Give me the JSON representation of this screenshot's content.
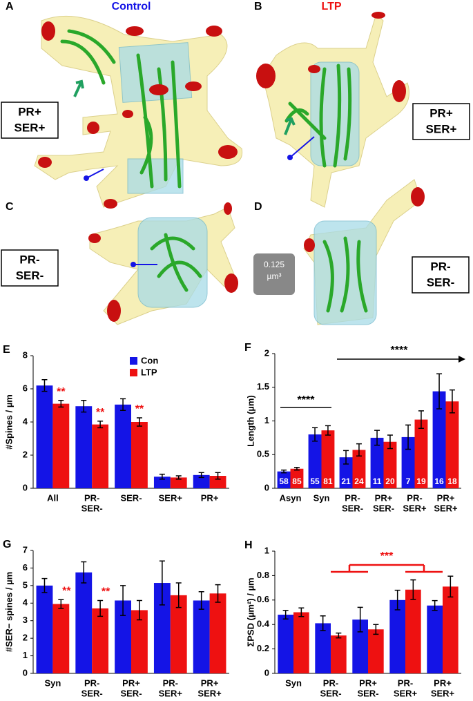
{
  "panels": [
    {
      "letter": "A",
      "title": "Control",
      "box": [
        "PR+",
        "SER+"
      ]
    },
    {
      "letter": "B",
      "title": "LTP",
      "box": [
        "PR+",
        "SER+"
      ]
    },
    {
      "letter": "C",
      "box": [
        "PR-",
        "SER-"
      ]
    },
    {
      "letter": "D",
      "box": [
        "PR-",
        "SER-"
      ]
    }
  ],
  "scale_cube": [
    "0.125",
    "µm³"
  ],
  "chart_data": [
    {
      "type": "bar",
      "letter": "E",
      "ylabel": "#Spines / µm",
      "legend": true,
      "categories": [
        [
          "All"
        ],
        [
          "PR-",
          "SER-"
        ],
        [
          "SER-"
        ],
        [
          "SER+"
        ],
        [
          "PR+"
        ]
      ],
      "series": [
        {
          "name": "Con",
          "color": "#1414e6",
          "values": [
            6.2,
            4.95,
            5.05,
            0.7,
            0.8
          ],
          "errors": [
            0.35,
            0.35,
            0.35,
            0.15,
            0.15
          ]
        },
        {
          "name": "LTP",
          "color": "#ee1111",
          "values": [
            5.1,
            3.85,
            4.0,
            0.65,
            0.75
          ],
          "errors": [
            0.2,
            0.2,
            0.25,
            0.1,
            0.2
          ]
        }
      ],
      "ylim": [
        0,
        8
      ],
      "yticks": [
        0,
        2,
        4,
        6,
        8
      ],
      "annotations": [
        "**",
        "**",
        "**"
      ],
      "annotation_color": "#ee1111"
    },
    {
      "type": "bar",
      "letter": "F",
      "ylabel": "Length (µm)",
      "categories": [
        [
          "Asyn"
        ],
        [
          "Syn"
        ],
        [
          "PR-",
          "SER-"
        ],
        [
          "PR+",
          "SER-"
        ],
        [
          "PR-",
          "SER+"
        ],
        [
          "PR+",
          "SER+"
        ]
      ],
      "series": [
        {
          "name": "Con",
          "color": "#1414e6",
          "values": [
            0.25,
            0.8,
            0.46,
            0.75,
            0.76,
            1.44
          ],
          "errors": [
            0.02,
            0.1,
            0.1,
            0.11,
            0.18,
            0.26
          ],
          "counts": [
            58,
            55,
            21,
            11,
            7,
            16
          ]
        },
        {
          "name": "LTP",
          "color": "#ee1111",
          "values": [
            0.29,
            0.86,
            0.57,
            0.69,
            1.02,
            1.29
          ],
          "errors": [
            0.02,
            0.07,
            0.09,
            0.1,
            0.13,
            0.17
          ],
          "counts": [
            85,
            81,
            24,
            20,
            19,
            18
          ]
        }
      ],
      "ylim": [
        0,
        2
      ],
      "yticks": [
        0,
        0.5,
        1,
        1.5,
        2
      ],
      "annotations": [
        "****",
        "****"
      ],
      "annotation_color": "#000000"
    },
    {
      "type": "bar",
      "letter": "G",
      "ylabel": "#SER− spines / µm",
      "categories": [
        [
          "Syn"
        ],
        [
          "PR-",
          "SER-"
        ],
        [
          "PR+",
          "SER-"
        ],
        [
          "PR-",
          "SER+"
        ],
        [
          "PR+",
          "SER+"
        ]
      ],
      "series": [
        {
          "name": "Con",
          "color": "#1414e6",
          "values": [
            5.0,
            5.75,
            4.15,
            5.15,
            4.15
          ],
          "errors": [
            0.4,
            0.6,
            0.85,
            1.25,
            0.5
          ]
        },
        {
          "name": "LTP",
          "color": "#ee1111",
          "values": [
            3.95,
            3.7,
            3.6,
            4.45,
            4.55
          ],
          "errors": [
            0.25,
            0.45,
            0.55,
            0.7,
            0.5
          ]
        }
      ],
      "ylim": [
        0,
        7
      ],
      "yticks": [
        0,
        1,
        2,
        3,
        4,
        5,
        6,
        7
      ],
      "annotations": [
        "**",
        "**"
      ],
      "annotation_color": "#ee1111"
    },
    {
      "type": "bar",
      "letter": "H",
      "ylabel": "ΣPSD (µm²) / µm",
      "categories": [
        [
          "Syn"
        ],
        [
          "PR-",
          "SER-"
        ],
        [
          "PR+",
          "SER-"
        ],
        [
          "PR-",
          "SER+"
        ],
        [
          "PR+",
          "SER+"
        ]
      ],
      "series": [
        {
          "name": "Con",
          "color": "#1414e6",
          "values": [
            0.48,
            0.41,
            0.44,
            0.6,
            0.555
          ],
          "errors": [
            0.035,
            0.06,
            0.1,
            0.08,
            0.04
          ]
        },
        {
          "name": "LTP",
          "color": "#ee1111",
          "values": [
            0.5,
            0.31,
            0.36,
            0.685,
            0.71
          ],
          "errors": [
            0.035,
            0.02,
            0.04,
            0.08,
            0.085
          ]
        }
      ],
      "ylim": [
        0,
        1
      ],
      "yticks": [
        0,
        0.2,
        0.4,
        0.6,
        0.8,
        1
      ],
      "annotations": [
        "***"
      ],
      "annotation_color": "#ee1111"
    }
  ]
}
